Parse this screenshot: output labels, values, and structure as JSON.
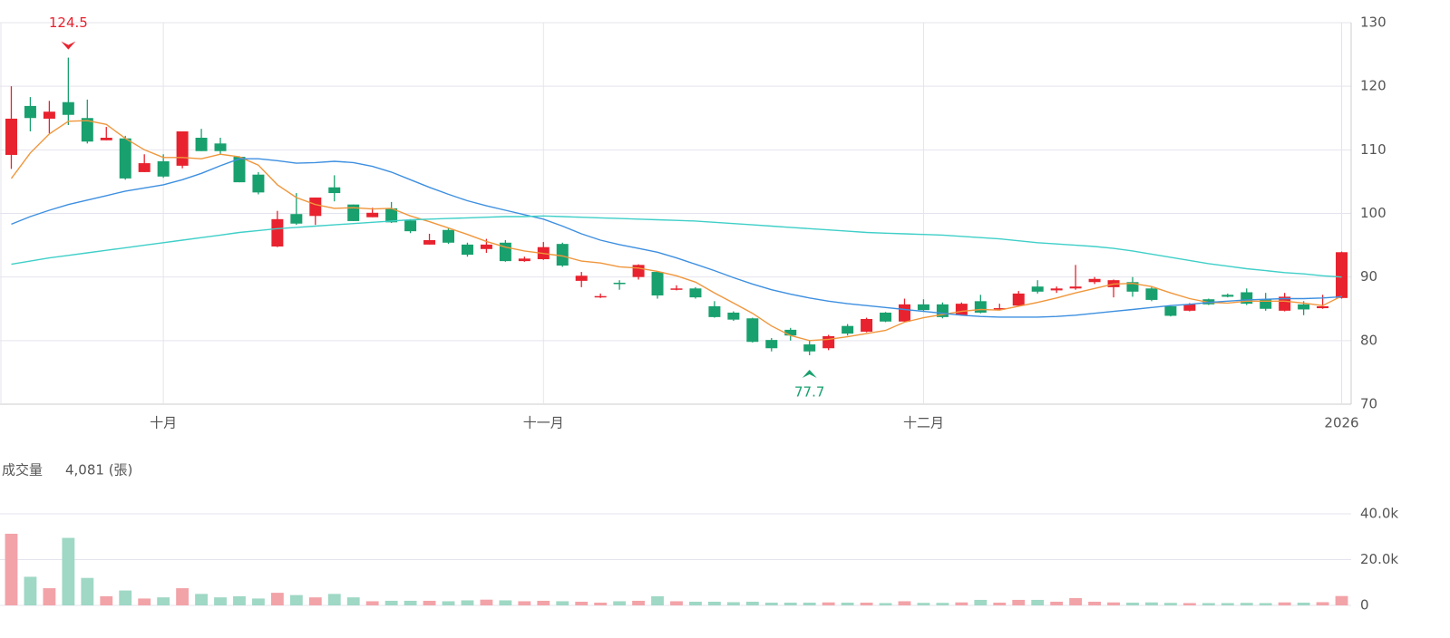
{
  "chart_data": {
    "type": "candlestick",
    "categories": [
      null,
      null,
      null,
      null,
      null,
      null,
      null,
      null,
      "十月",
      null,
      null,
      null,
      null,
      null,
      null,
      null,
      null,
      null,
      null,
      null,
      null,
      null,
      null,
      null,
      null,
      null,
      null,
      null,
      "十一月",
      null,
      null,
      null,
      null,
      null,
      null,
      null,
      null,
      null,
      null,
      null,
      null,
      null,
      null,
      null,
      null,
      null,
      null,
      null,
      "十二月",
      null,
      null,
      null,
      null,
      null,
      null,
      null,
      null,
      null,
      null,
      null,
      null,
      null,
      null,
      null,
      null,
      null,
      null,
      null,
      null,
      null,
      "2026"
    ],
    "open": [
      109.2,
      116.9,
      114.9,
      117.5,
      115.0,
      111.5,
      111.8,
      106.5,
      108.2,
      107.5,
      111.9,
      111.0,
      108.9,
      106.1,
      94.8,
      99.9,
      99.6,
      104.1,
      101.4,
      99.4,
      100.8,
      98.9,
      95.1,
      97.4,
      95.1,
      94.4,
      95.4,
      92.5,
      92.8,
      95.2,
      89.4,
      86.8,
      89.1,
      90.0,
      90.8,
      88.0,
      88.2,
      85.4,
      84.4,
      83.5,
      80.1,
      81.7,
      79.4,
      78.8,
      82.3,
      81.4,
      84.4,
      83.0,
      85.7,
      85.7,
      84.0,
      86.2,
      85.0,
      85.5,
      88.5,
      87.9,
      88.2,
      89.2,
      88.4,
      89.2,
      88.2,
      85.4,
      84.7,
      86.5,
      87.2,
      87.6,
      86.5,
      84.7,
      85.7,
      85.1,
      86.7
    ],
    "high": [
      120.0,
      118.3,
      117.7,
      124.5,
      117.9,
      113.6,
      112.2,
      109.3,
      109.3,
      112.9,
      113.3,
      111.9,
      109.0,
      106.5,
      100.4,
      103.2,
      102.5,
      106.0,
      101.4,
      100.9,
      101.8,
      99.1,
      96.8,
      97.7,
      95.4,
      96.0,
      95.8,
      93.2,
      95.5,
      95.4,
      90.8,
      87.4,
      89.5,
      92.0,
      90.9,
      88.7,
      88.4,
      86.2,
      84.6,
      83.6,
      80.4,
      82.0,
      80.0,
      80.9,
      82.6,
      83.6,
      84.5,
      86.6,
      86.5,
      86.0,
      86.0,
      87.2,
      85.8,
      87.8,
      89.5,
      88.5,
      91.9,
      90.0,
      89.6,
      90.0,
      88.5,
      85.6,
      85.9,
      86.6,
      87.4,
      88.2,
      87.5,
      87.5,
      86.2,
      87.2,
      94.0
    ],
    "low": [
      107.0,
      112.9,
      112.6,
      113.9,
      111.0,
      111.5,
      105.3,
      106.5,
      105.6,
      107.1,
      109.8,
      109.3,
      104.9,
      103.0,
      94.7,
      98.2,
      98.2,
      101.9,
      98.8,
      99.4,
      98.5,
      96.9,
      95.1,
      95.2,
      93.2,
      93.8,
      92.4,
      92.4,
      92.7,
      91.6,
      88.4,
      86.7,
      88.0,
      89.6,
      86.6,
      87.9,
      86.6,
      83.6,
      83.1,
      79.7,
      78.3,
      80.0,
      77.7,
      78.5,
      80.8,
      81.3,
      82.9,
      82.9,
      84.5,
      83.5,
      83.9,
      84.3,
      84.9,
      85.4,
      87.4,
      87.5,
      88.0,
      88.9,
      86.8,
      86.9,
      86.2,
      83.8,
      84.6,
      85.6,
      86.8,
      85.6,
      84.7,
      84.6,
      84.0,
      85.0,
      86.6
    ],
    "close": [
      114.9,
      115.0,
      116.0,
      115.5,
      111.3,
      111.9,
      105.5,
      107.9,
      105.8,
      112.9,
      109.8,
      109.8,
      104.9,
      103.3,
      99.1,
      98.4,
      102.5,
      103.2,
      98.8,
      100.1,
      98.6,
      97.2,
      95.8,
      95.4,
      93.5,
      95.1,
      92.5,
      92.9,
      94.7,
      91.8,
      90.2,
      87.0,
      89.0,
      91.9,
      87.1,
      88.2,
      86.8,
      83.7,
      83.3,
      79.8,
      78.8,
      80.8,
      78.3,
      80.7,
      81.1,
      83.4,
      83.0,
      85.7,
      84.8,
      83.7,
      85.8,
      84.4,
      85.1,
      87.4,
      87.7,
      88.2,
      88.5,
      89.7,
      89.5,
      87.7,
      86.4,
      83.9,
      85.7,
      85.7,
      86.9,
      85.8,
      85.0,
      86.9,
      84.9,
      85.4,
      93.9
    ],
    "up_color": "#e8222e",
    "down_color": "#18a06e",
    "lines": [
      {
        "color": "#f0963c",
        "values": [
          105.5,
          109.5,
          112.5,
          114.5,
          114.6,
          114.0,
          111.8,
          110.0,
          108.8,
          108.8,
          108.6,
          109.3,
          108.9,
          107.6,
          104.5,
          102.5,
          101.4,
          100.8,
          100.9,
          100.7,
          100.8,
          99.6,
          98.7,
          97.7,
          96.7,
          95.6,
          94.7,
          94.1,
          93.7,
          93.3,
          92.5,
          92.2,
          91.6,
          91.4,
          90.9,
          90.2,
          89.2,
          87.5,
          85.9,
          84.3,
          82.3,
          80.8,
          80.0,
          80.2,
          80.6,
          81.1,
          81.6,
          82.9,
          83.6,
          84.1,
          84.6,
          84.9,
          84.8,
          85.4,
          86.0,
          86.7,
          87.5,
          88.2,
          88.9,
          89.0,
          88.5,
          87.5,
          86.6,
          86.0,
          85.9,
          86.2,
          86.2,
          86.2,
          85.9,
          85.5,
          87.0
        ]
      },
      {
        "color": "#3d8fe0",
        "values": [
          98.3,
          99.5,
          100.5,
          101.4,
          102.1,
          102.8,
          103.5,
          104.0,
          104.5,
          105.3,
          106.3,
          107.5,
          108.6,
          108.6,
          108.3,
          107.9,
          108.0,
          108.2,
          108.0,
          107.4,
          106.5,
          105.3,
          104.1,
          103.0,
          102.0,
          101.2,
          100.5,
          99.8,
          99.1,
          98.0,
          96.8,
          95.8,
          95.1,
          94.5,
          93.9,
          93.0,
          92.0,
          91.0,
          89.9,
          88.9,
          88.0,
          87.3,
          86.7,
          86.2,
          85.8,
          85.5,
          85.2,
          84.9,
          84.6,
          84.3,
          84.0,
          83.8,
          83.7,
          83.7,
          83.7,
          83.8,
          84.0,
          84.3,
          84.6,
          84.9,
          85.2,
          85.5,
          85.7,
          86.0,
          86.2,
          86.4,
          86.5,
          86.6,
          86.6,
          86.7,
          86.9
        ]
      },
      {
        "color": "#3fcfc8",
        "values": [
          92.0,
          92.5,
          93.0,
          93.4,
          93.8,
          94.2,
          94.6,
          95.0,
          95.4,
          95.8,
          96.2,
          96.6,
          97.0,
          97.3,
          97.6,
          97.8,
          98.0,
          98.2,
          98.4,
          98.6,
          98.8,
          99.0,
          99.1,
          99.2,
          99.3,
          99.4,
          99.5,
          99.5,
          99.6,
          99.5,
          99.4,
          99.3,
          99.2,
          99.1,
          99.0,
          98.9,
          98.8,
          98.6,
          98.4,
          98.2,
          98.0,
          97.8,
          97.6,
          97.4,
          97.2,
          97.0,
          96.9,
          96.8,
          96.7,
          96.6,
          96.4,
          96.2,
          96.0,
          95.7,
          95.4,
          95.2,
          95.0,
          94.8,
          94.5,
          94.1,
          93.6,
          93.1,
          92.6,
          92.1,
          91.7,
          91.3,
          91.0,
          90.7,
          90.5,
          90.2,
          90.0
        ]
      }
    ],
    "ylim": [
      70,
      130
    ],
    "yticks": [
      70,
      80,
      90,
      100,
      110,
      120,
      130
    ],
    "grid": true,
    "volume": {
      "type": "bar",
      "label": "成交量",
      "readout": "4,081 (張)",
      "up_color": "#f2a3a8",
      "down_color": "#9fd8c4",
      "values": [
        31300,
        12500,
        7500,
        29500,
        12000,
        4000,
        6500,
        3000,
        3500,
        7500,
        5000,
        3500,
        4000,
        3000,
        5500,
        4500,
        3500,
        5000,
        3500,
        1800,
        2000,
        2000,
        2000,
        1800,
        2200,
        2500,
        2200,
        1800,
        2000,
        1800,
        1600,
        1200,
        1800,
        2000,
        4000,
        1800,
        1600,
        1600,
        1400,
        1600,
        1200,
        1200,
        1200,
        1300,
        1200,
        1200,
        1000,
        1800,
        1100,
        1100,
        1300,
        2400,
        1200,
        2400,
        2400,
        1600,
        3200,
        1600,
        1300,
        1200,
        1300,
        1100,
        1000,
        1000,
        1000,
        1100,
        1000,
        1300,
        1200,
        1400,
        4081
      ],
      "ylim": [
        0,
        40000
      ],
      "yticks": [
        0,
        {
          "value": 20000,
          "label": "20.0k"
        },
        {
          "value": 40000,
          "label": "40.0k"
        }
      ]
    }
  }
}
